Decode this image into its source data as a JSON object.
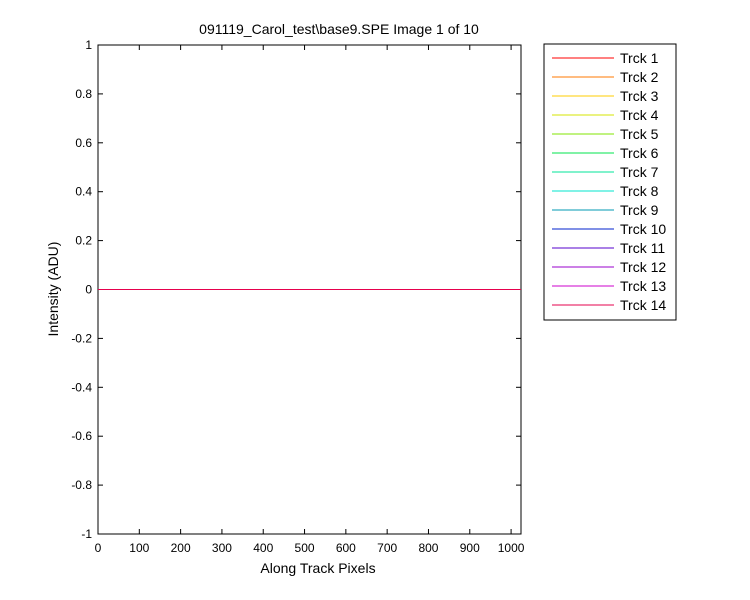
{
  "chart_data": {
    "type": "line",
    "title": "091119_Carol_test\\base9.SPE  Image 1 of 10",
    "xlabel": "Along Track Pixels",
    "ylabel": "Intensity (ADU)",
    "xlim": [
      0,
      1024
    ],
    "ylim": [
      -1,
      1
    ],
    "x_ticks": [
      0,
      100,
      200,
      300,
      400,
      500,
      600,
      700,
      800,
      900,
      1000
    ],
    "x_tick_labels": [
      "0",
      "100",
      "200",
      "300",
      "400",
      "500",
      "600",
      "700",
      "800",
      "900",
      "1000"
    ],
    "y_ticks": [
      1,
      0.8,
      0.6,
      0.4,
      0.2,
      0,
      -0.2,
      -0.4,
      -0.6,
      -0.8,
      -1
    ],
    "y_tick_labels": [
      "1",
      "0.8",
      "0.6",
      "0.4",
      "0.2",
      "0",
      "-0.2",
      "-0.4",
      "-0.6",
      "-0.8",
      "-1"
    ],
    "grid": false,
    "legend_position": "outside-right",
    "series": [
      {
        "name": "Trck 1",
        "color": "#ff0000",
        "x": [
          0,
          1024
        ],
        "y": [
          0,
          0
        ]
      },
      {
        "name": "Trck 2",
        "color": "#ff7a00",
        "x": [
          0,
          1024
        ],
        "y": [
          0,
          0
        ]
      },
      {
        "name": "Trck 3",
        "color": "#ffcc00",
        "x": [
          0,
          1024
        ],
        "y": [
          0,
          0
        ]
      },
      {
        "name": "Trck 4",
        "color": "#d6e600",
        "x": [
          0,
          1024
        ],
        "y": [
          0,
          0
        ]
      },
      {
        "name": "Trck 5",
        "color": "#80e600",
        "x": [
          0,
          1024
        ],
        "y": [
          0,
          0
        ]
      },
      {
        "name": "Trck 6",
        "color": "#00e64d",
        "x": [
          0,
          1024
        ],
        "y": [
          0,
          0
        ]
      },
      {
        "name": "Trck 7",
        "color": "#00e699",
        "x": [
          0,
          1024
        ],
        "y": [
          0,
          0
        ]
      },
      {
        "name": "Trck 8",
        "color": "#00e6cc",
        "x": [
          0,
          1024
        ],
        "y": [
          0,
          0
        ]
      },
      {
        "name": "Trck 9",
        "color": "#0099b3",
        "x": [
          0,
          1024
        ],
        "y": [
          0,
          0
        ]
      },
      {
        "name": "Trck 10",
        "color": "#0022cc",
        "x": [
          0,
          1024
        ],
        "y": [
          0,
          0
        ]
      },
      {
        "name": "Trck 11",
        "color": "#5500cc",
        "x": [
          0,
          1024
        ],
        "y": [
          0,
          0
        ]
      },
      {
        "name": "Trck 12",
        "color": "#9900cc",
        "x": [
          0,
          1024
        ],
        "y": [
          0,
          0
        ]
      },
      {
        "name": "Trck 13",
        "color": "#cc00cc",
        "x": [
          0,
          1024
        ],
        "y": [
          0,
          0
        ]
      },
      {
        "name": "Trck 14",
        "color": "#e6004d",
        "x": [
          0,
          1024
        ],
        "y": [
          0,
          0
        ]
      }
    ]
  }
}
